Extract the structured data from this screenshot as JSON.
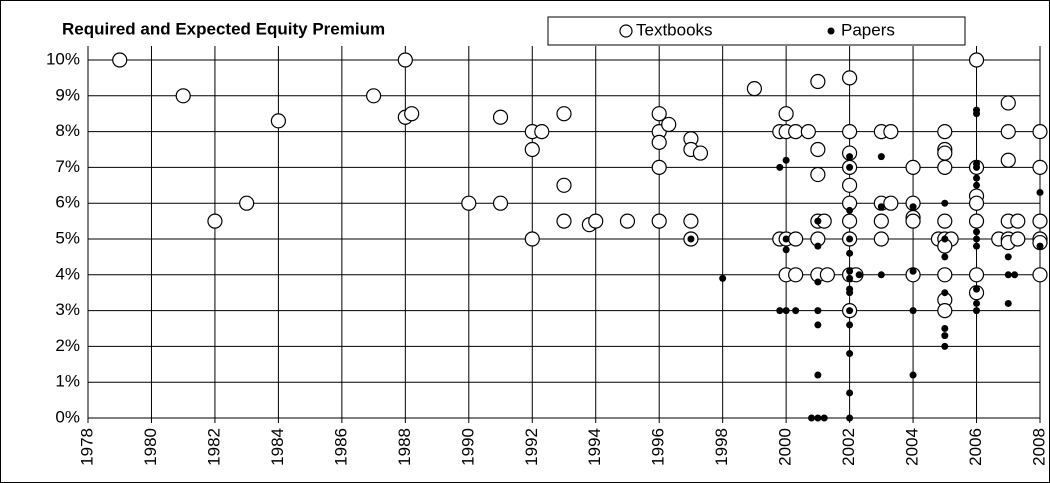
{
  "chart_data": {
    "type": "scatter",
    "title": "Required and Expected Equity Premium",
    "xlim": [
      1978,
      2008
    ],
    "xticks": [
      1978,
      1980,
      1982,
      1984,
      1986,
      1988,
      1990,
      1992,
      1994,
      1996,
      1998,
      2000,
      2002,
      2004,
      2006,
      2008
    ],
    "ylim": [
      0,
      10
    ],
    "yticks": [
      {
        "value": 0,
        "label": "0%"
      },
      {
        "value": 1,
        "label": "1%"
      },
      {
        "value": 2,
        "label": "2%"
      },
      {
        "value": 3,
        "label": "3%"
      },
      {
        "value": 4,
        "label": "4%"
      },
      {
        "value": 5,
        "label": "5%"
      },
      {
        "value": 6,
        "label": "6%"
      },
      {
        "value": 7,
        "label": "7%"
      },
      {
        "value": 8,
        "label": "8%"
      },
      {
        "value": 9,
        "label": "9%"
      },
      {
        "value": 10,
        "label": "10%"
      }
    ],
    "grid": true,
    "series": [
      {
        "name": "Textbooks",
        "color": "#000000",
        "marker": "open",
        "x": [
          1979,
          1981,
          1982,
          1983,
          1984,
          1987,
          1988,
          1988,
          1988.2,
          1990,
          1991,
          1991,
          1992,
          1992,
          1992,
          1992.3,
          1993,
          1993,
          1993,
          1993.8,
          1994,
          1995,
          1996,
          1996,
          1996,
          1996,
          1996,
          1996.3,
          1997,
          1997,
          1997.3,
          1997,
          1997,
          1999,
          1999.8,
          2000,
          2000,
          2000.3,
          2000.7,
          1999.8,
          2000,
          2000.3,
          2000,
          2000.3,
          2001,
          2001,
          2001,
          2001,
          2001.2,
          2001,
          2001,
          2001.3,
          2002,
          2002,
          2002,
          2002,
          2002,
          2002,
          2002,
          2002,
          2002,
          2002.2,
          2002,
          2003,
          2003.3,
          2003,
          2003.3,
          2003,
          2003,
          2004,
          2004,
          2004,
          2004,
          2004,
          2004.8,
          2005,
          2005,
          2005,
          2005,
          2005,
          2005,
          2005.2,
          2005,
          2005,
          2005,
          2005,
          2006,
          2006,
          2006,
          2006,
          2006,
          2006,
          2006,
          2006.7,
          2007,
          2007,
          2007,
          2007,
          2007,
          2007,
          2007.3,
          2007.3,
          2008,
          2008,
          2008,
          2008,
          2008,
          2008
        ],
        "values": [
          10,
          9,
          5.5,
          6,
          8.3,
          9,
          10,
          8.4,
          8.5,
          6,
          8.4,
          6,
          8,
          7.5,
          5,
          8,
          8.5,
          6.5,
          5.5,
          5.4,
          5.5,
          5.5,
          8.5,
          8,
          7.7,
          7,
          5.5,
          8.2,
          7.8,
          7.5,
          7.4,
          5.5,
          5,
          9.2,
          8,
          8.5,
          8,
          8,
          8,
          5,
          5,
          5,
          4,
          4,
          9.4,
          7.5,
          6.8,
          5.5,
          5.5,
          5,
          4,
          4,
          9.5,
          8,
          7.4,
          7,
          6.5,
          6,
          5.5,
          5,
          4,
          4,
          3,
          8,
          8,
          6,
          6,
          5.5,
          5,
          7,
          6,
          5.6,
          5.5,
          4,
          5,
          8,
          7.5,
          7.4,
          7,
          5.5,
          5,
          5,
          4.8,
          4,
          3.3,
          3,
          10,
          7,
          6.2,
          6,
          5.5,
          4,
          3.5,
          5,
          8.8,
          8,
          7.2,
          5.5,
          5,
          4.9,
          5.5,
          5,
          8,
          7,
          5.5,
          5,
          4.9,
          4
        ]
      },
      {
        "name": "Papers",
        "color": "#000000",
        "marker": "filled",
        "x": [
          1997,
          1998,
          1999.8,
          2000,
          1999.8,
          2000,
          2000.3,
          2000,
          2000,
          2001,
          2001,
          2001,
          2001,
          2001,
          2001,
          2000.8,
          2001,
          2001.2,
          2002,
          2002,
          2002,
          2002,
          2002,
          2002,
          2002,
          2002,
          2002,
          2002,
          2002,
          2002,
          2002,
          2002,
          2002.3,
          2003,
          2003,
          2003,
          2004,
          2004,
          2004,
          2004,
          2005,
          2005,
          2005,
          2005,
          2005,
          2005,
          2005,
          2006,
          2006,
          2006,
          2006,
          2006,
          2006,
          2006,
          2006,
          2006,
          2006,
          2006,
          2006,
          2007,
          2007,
          2007.2,
          2007,
          2008,
          2008
        ],
        "values": [
          5,
          3.9,
          7,
          7.2,
          3,
          3,
          3,
          4.7,
          5,
          5.5,
          4.8,
          3.8,
          3,
          2.6,
          1.2,
          0,
          0,
          0,
          7.3,
          7,
          5.8,
          5,
          4.6,
          4.1,
          3.9,
          3.6,
          3.5,
          3,
          2.6,
          1.8,
          0.7,
          0,
          4,
          7.3,
          5.9,
          4,
          5.9,
          4.1,
          3,
          1.2,
          6,
          5,
          4.5,
          3.5,
          2.5,
          2.3,
          2,
          8.6,
          8.5,
          7.1,
          7,
          6.7,
          6.5,
          5.2,
          5,
          4.8,
          3.6,
          3.2,
          3,
          4.5,
          4,
          4,
          3.2,
          6.3,
          4.8
        ]
      }
    ]
  }
}
